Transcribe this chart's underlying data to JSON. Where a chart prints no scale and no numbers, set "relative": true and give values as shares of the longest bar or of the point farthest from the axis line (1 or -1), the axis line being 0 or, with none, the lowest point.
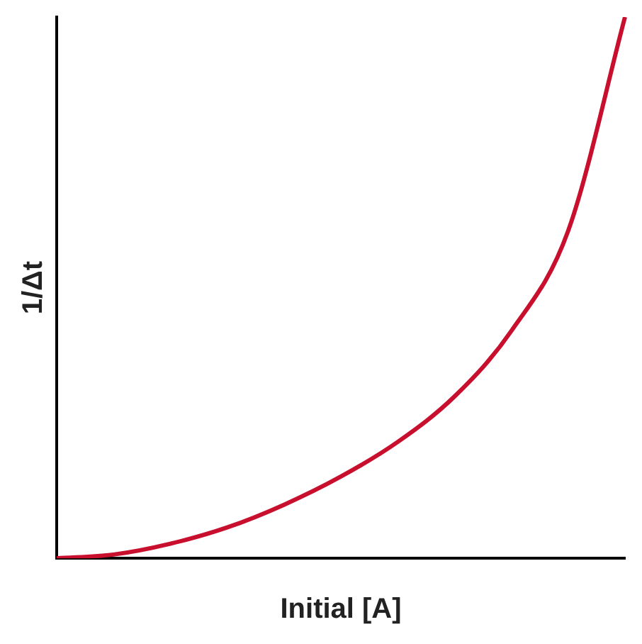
{
  "chart_data": {
    "type": "line",
    "relative": true,
    "xlabel": "Initial [A]",
    "ylabel": "1/Δt",
    "categories": [
      null,
      null,
      null,
      null,
      null,
      null,
      null,
      null,
      null,
      null,
      null
    ],
    "series": [
      {
        "color": "#c8102e",
        "values": [
          0,
          0.007,
          0.027,
          0.057,
          0.099,
          0.151,
          0.215,
          0.299,
          0.42,
          0.605,
          1
        ]
      }
    ],
    "marker": "none",
    "line_style": "solid",
    "grid": false,
    "legend": false
  }
}
